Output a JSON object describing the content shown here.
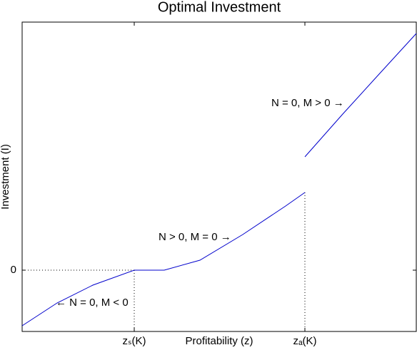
{
  "chart_data": {
    "type": "line",
    "title": "Optimal Investment",
    "x_label": "Profitability (z)",
    "y_label": "Investment (I)",
    "x": [
      0,
      0.49,
      0.99,
      1.57,
      1.99,
      2.49,
      3.09,
      3.69,
      3.96,
      3.96,
      3.96,
      4.49,
      4.99,
      5.52
    ],
    "values": [
      -0.78,
      -0.46,
      -0.21,
      0,
      0,
      0.14,
      0.5,
      0.9,
      1.09,
      null,
      1.59,
      2.19,
      2.74,
      3.32
    ],
    "color": "#0000cc",
    "xlim": [
      0,
      5.52
    ],
    "ylim": [
      -0.86,
      3.48
    ],
    "xticks": [
      {
        "value": 1.57,
        "label": "zₛ(K)"
      },
      {
        "value": 3.96,
        "label": "zₐ(K)"
      }
    ],
    "yticks": [
      0
    ],
    "annotations": [
      "← N = 0, M < 0",
      "N > 0, M = 0 →",
      "N = 0, M > 0 →"
    ],
    "grid": false
  }
}
